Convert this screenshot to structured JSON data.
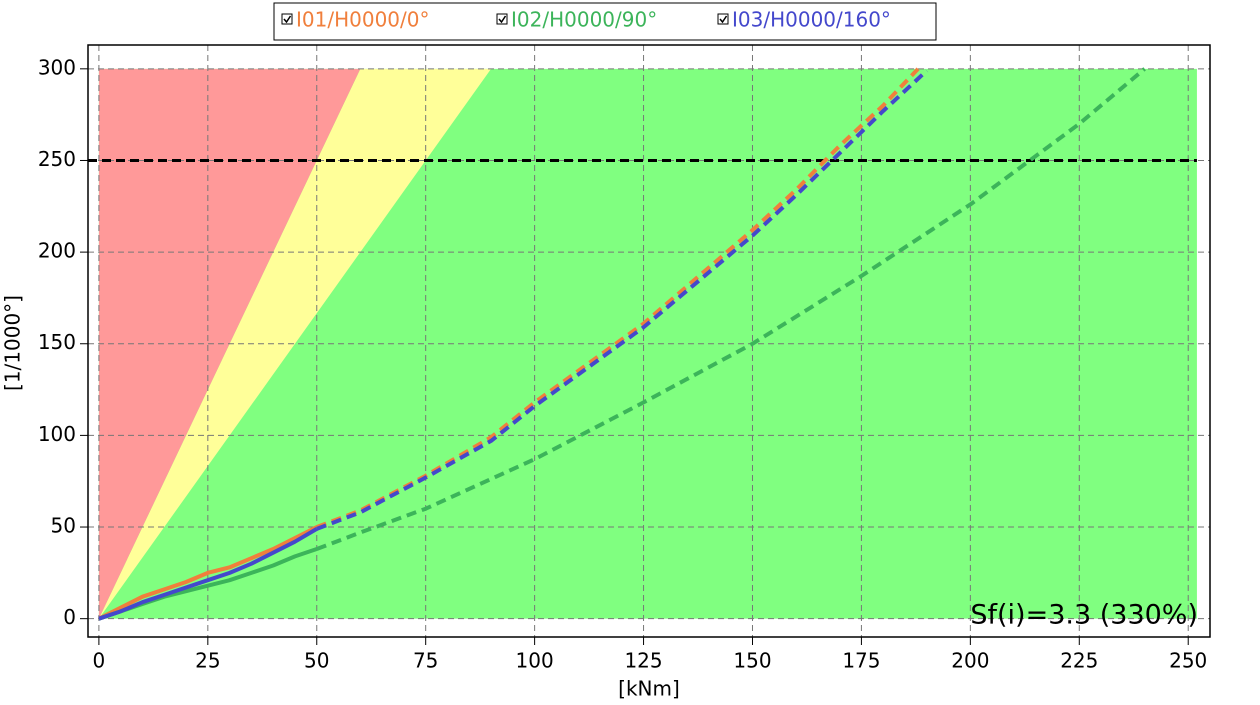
{
  "chart_data": {
    "type": "line",
    "x_label": "[kNm]",
    "y_label": "[1/1000°]",
    "annotation": "Sf(i)=3.3 (330%)",
    "xlim": [
      -2.5,
      255
    ],
    "ylim": [
      -10,
      313
    ],
    "xticks": [
      0,
      25,
      50,
      75,
      100,
      125,
      150,
      175,
      200,
      225,
      250
    ],
    "yticks": [
      0,
      50,
      100,
      150,
      200,
      250,
      300
    ],
    "grid": true,
    "dash_from_x": 50,
    "zones": [
      {
        "color": "#80ff80",
        "x": [
          0,
          252,
          252,
          0
        ],
        "y": [
          0,
          0,
          300,
          300
        ]
      },
      {
        "color": "#ffff99",
        "x": [
          0,
          60,
          90
        ],
        "y": [
          0,
          300,
          300
        ]
      },
      {
        "color": "#ff9999",
        "x": [
          0,
          0,
          60
        ],
        "y": [
          0,
          300,
          300
        ]
      }
    ],
    "threshold": {
      "value": 250,
      "color": "#000000"
    },
    "series": [
      {
        "name": "I01/H0000/0°",
        "color": "#f07f3c",
        "x": [
          0,
          5,
          10,
          15,
          20,
          25,
          30,
          35,
          40,
          45,
          50,
          60,
          75,
          90,
          100,
          125,
          150,
          160,
          170,
          180,
          188
        ],
        "values": [
          0,
          6,
          12,
          16,
          20,
          25,
          28,
          33,
          38,
          44,
          50,
          59,
          78,
          99,
          118,
          161,
          212,
          234,
          258,
          280,
          300
        ]
      },
      {
        "name": "I02/H0000/90°",
        "color": "#3cb45a",
        "x": [
          0,
          5,
          10,
          15,
          20,
          25,
          30,
          35,
          40,
          45,
          50,
          60,
          75,
          100,
          125,
          150,
          175,
          200,
          225,
          240
        ],
        "values": [
          0,
          4,
          8,
          12,
          15,
          18,
          21,
          25,
          29,
          34,
          38,
          47,
          60,
          87,
          118,
          150,
          187,
          226,
          270,
          300
        ]
      },
      {
        "name": "I03/H0000/160°",
        "color": "#4448cc",
        "x": [
          0,
          5,
          10,
          15,
          20,
          25,
          30,
          35,
          40,
          45,
          50,
          60,
          75,
          90,
          100,
          125,
          150,
          160,
          170,
          180,
          190
        ],
        "values": [
          0,
          4,
          9,
          13,
          17,
          21,
          25,
          30,
          36,
          42,
          49,
          58,
          77,
          97,
          116,
          159,
          209,
          231,
          254,
          277,
          299
        ]
      }
    ]
  }
}
